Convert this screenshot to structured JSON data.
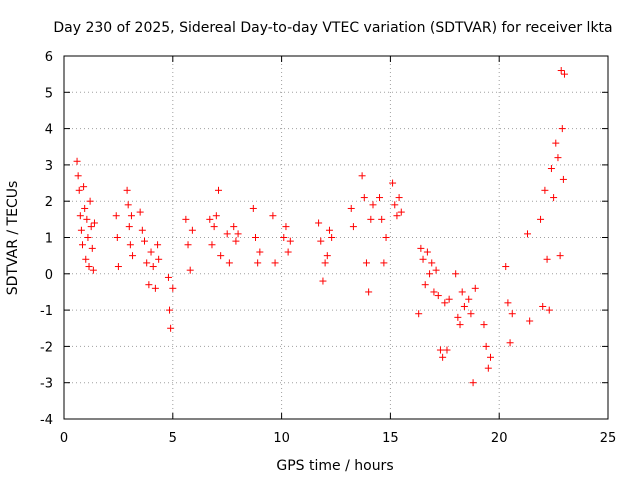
{
  "chart_data": {
    "type": "scatter",
    "title": "Day 230 of 2025, Sidereal Day-to-day VTEC variation (SDTVAR) for receiver lkta",
    "xlabel": "GPS time / hours",
    "ylabel": "SDTVAR / TECUs",
    "xlim": [
      0,
      25
    ],
    "ylim": [
      -4,
      6
    ],
    "xticks": [
      "0",
      "5",
      "10",
      "15",
      "20",
      "25"
    ],
    "yticks": [
      "-4",
      "-3",
      "-2",
      "-1",
      "0",
      "1",
      "2",
      "3",
      "4",
      "5",
      "6"
    ],
    "grid": true,
    "marker": "+",
    "color": "#ff0000",
    "series": [
      {
        "name": "SDTVAR",
        "x": [
          0.6,
          0.65,
          0.7,
          0.75,
          0.8,
          0.85,
          0.9,
          0.95,
          1.0,
          1.05,
          1.1,
          1.15,
          1.2,
          1.25,
          1.3,
          1.35,
          1.4,
          2.4,
          2.45,
          2.5,
          2.9,
          2.95,
          3.0,
          3.05,
          3.1,
          3.15,
          3.5,
          3.6,
          3.7,
          3.8,
          3.9,
          4.0,
          4.1,
          4.2,
          4.3,
          4.35,
          4.8,
          4.85,
          4.9,
          5.0,
          5.6,
          5.7,
          5.8,
          5.9,
          6.7,
          6.8,
          6.9,
          7.0,
          7.1,
          7.2,
          7.5,
          7.6,
          7.8,
          7.9,
          8.0,
          8.7,
          8.8,
          8.9,
          9.0,
          9.6,
          9.7,
          10.1,
          10.2,
          10.3,
          10.4,
          11.7,
          11.8,
          11.9,
          12.0,
          12.1,
          12.2,
          12.3,
          13.2,
          13.3,
          13.7,
          13.8,
          13.9,
          14.0,
          14.1,
          14.2,
          14.5,
          14.6,
          14.7,
          14.8,
          15.1,
          15.2,
          15.3,
          15.4,
          15.5,
          16.3,
          16.4,
          16.5,
          16.6,
          16.7,
          16.8,
          16.9,
          17.0,
          17.1,
          17.2,
          17.3,
          17.4,
          17.5,
          17.6,
          17.7,
          18.0,
          18.1,
          18.2,
          18.3,
          18.4,
          18.6,
          18.7,
          18.8,
          18.9,
          19.3,
          19.4,
          19.5,
          19.6,
          20.3,
          20.4,
          20.5,
          20.6,
          21.3,
          21.4,
          21.9,
          22.0,
          22.1,
          22.2,
          22.3,
          22.4,
          22.5,
          22.6,
          22.7,
          22.8,
          22.85,
          22.9,
          22.95,
          23.0
        ],
        "y": [
          3.1,
          2.7,
          2.3,
          1.6,
          1.2,
          0.8,
          2.4,
          1.8,
          0.4,
          1.5,
          1.0,
          0.2,
          2.0,
          1.3,
          0.7,
          0.1,
          1.4,
          1.6,
          1.0,
          0.2,
          2.3,
          1.9,
          1.3,
          0.8,
          1.6,
          0.5,
          1.7,
          1.2,
          0.9,
          0.3,
          -0.3,
          0.6,
          0.2,
          -0.4,
          0.8,
          0.4,
          -0.1,
          -1.0,
          -1.5,
          -0.4,
          1.5,
          0.8,
          0.1,
          1.2,
          1.5,
          0.8,
          1.3,
          1.6,
          2.3,
          0.5,
          1.1,
          0.3,
          1.3,
          0.9,
          1.1,
          1.8,
          1.0,
          0.3,
          0.6,
          1.6,
          0.3,
          1.0,
          1.3,
          0.6,
          0.9,
          1.4,
          0.9,
          -0.2,
          0.3,
          0.5,
          1.2,
          1.0,
          1.8,
          1.3,
          2.7,
          2.1,
          0.3,
          -0.5,
          1.5,
          1.9,
          2.1,
          1.5,
          0.3,
          1.0,
          2.5,
          1.9,
          1.6,
          2.1,
          1.7,
          -1.1,
          0.7,
          0.4,
          -0.3,
          0.6,
          0.0,
          0.3,
          -0.5,
          0.1,
          -0.6,
          -2.1,
          -2.3,
          -0.8,
          -2.1,
          -0.7,
          0.0,
          -1.2,
          -1.4,
          -0.5,
          -0.9,
          -0.7,
          -1.1,
          -3.0,
          -0.4,
          -1.4,
          -2.0,
          -2.6,
          -2.3,
          0.2,
          -0.8,
          -1.9,
          -1.1,
          1.1,
          -1.3,
          1.5,
          -0.9,
          2.3,
          0.4,
          -1.0,
          2.9,
          2.1,
          3.6,
          3.2,
          0.5,
          5.6,
          4.0,
          2.6,
          5.5
        ]
      }
    ]
  }
}
